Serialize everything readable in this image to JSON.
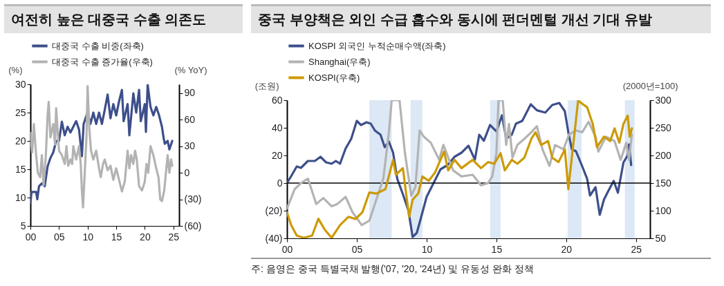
{
  "chart_data": [
    {
      "type": "line",
      "title": "여전히 높은 대중국 수출 의존도",
      "ylabel": "(%)",
      "y2label": "(% YoY)",
      "legend": "top",
      "xlim": [
        2000,
        2026
      ],
      "xticks": [
        {
          "value": 2000,
          "label": "00"
        },
        {
          "value": 2005,
          "label": "05"
        },
        {
          "value": 2010,
          "label": "10"
        },
        {
          "value": 2015,
          "label": "15"
        },
        {
          "value": 2020,
          "label": "20"
        },
        {
          "value": 2025,
          "label": "25"
        }
      ],
      "ylim": [
        5,
        30
      ],
      "yticks": [
        5,
        10,
        15,
        20,
        25,
        30
      ],
      "y2lim": [
        -60,
        100
      ],
      "y2ticks": [
        {
          "value": -60,
          "label": "(60)"
        },
        {
          "value": -30,
          "label": "(30)"
        },
        0,
        30,
        60,
        90
      ],
      "series": [
        {
          "name": "대중국 수출 비중(좌축)",
          "color": "#3d4f8a",
          "x": [
            2000,
            2000.2,
            2000.6,
            2001,
            2001.2,
            2001.5,
            2002,
            2002.5,
            2003,
            2003.5,
            2004,
            2004.5,
            2005,
            2005.5,
            2006,
            2006.5,
            2007,
            2007.5,
            2008,
            2008.5,
            2009,
            2009.3,
            2010,
            2010.5,
            2011,
            2011.5,
            2012,
            2012.5,
            2013,
            2013.5,
            2014,
            2014.5,
            2015,
            2015.5,
            2016,
            2016.3,
            2017,
            2017.3,
            2018,
            2018.5,
            2019,
            2019.3,
            2020,
            2020.2,
            2020.5,
            2021,
            2021.5,
            2022,
            2022.5,
            2023,
            2023.3,
            2023.5,
            2024,
            2024.3,
            2024.8
          ],
          "values": [
            9.1,
            11,
            11,
            11,
            9.7,
            12,
            12.5,
            12,
            15.5,
            17,
            18,
            20,
            20,
            23.4,
            21,
            22.5,
            21.5,
            22.5,
            23.5,
            22,
            17.3,
            23,
            25.1,
            23,
            25,
            23,
            25,
            23,
            25.5,
            28.2,
            24,
            26.5,
            24.5,
            27,
            29,
            23.5,
            26.5,
            21,
            28.4,
            25,
            29,
            23.5,
            26.5,
            21.6,
            30,
            26,
            24.5,
            26,
            24.5,
            22.5,
            20.5,
            19.5,
            20,
            18.5,
            20
          ]
        },
        {
          "name": "대중국 수출 증가율(우축)",
          "color": "#b3b3b3",
          "axis": "y2",
          "x": [
            2000,
            2000.3,
            2000.6,
            2001,
            2001.3,
            2001.7,
            2002,
            2002.3,
            2002.7,
            2003,
            2003.2,
            2003.5,
            2004,
            2004.3,
            2004.5,
            2005,
            2005.5,
            2006,
            2006.3,
            2006.6,
            2007,
            2007.3,
            2007.5,
            2008,
            2008.5,
            2008.8,
            2009,
            2009.2,
            2009.5,
            2009.8,
            2010,
            2010.3,
            2010.6,
            2011,
            2011.5,
            2012,
            2012.3,
            2012.7,
            2013,
            2013.5,
            2014,
            2014.5,
            2015,
            2015.5,
            2016,
            2016.5,
            2017,
            2017.3,
            2017.6,
            2018,
            2018.3,
            2018.6,
            2019,
            2019.5,
            2020,
            2020.3,
            2020.6,
            2021,
            2021.5,
            2022,
            2022.4,
            2022.7,
            2023,
            2023.4,
            2023.7,
            2024,
            2024.3,
            2024.6,
            2024.8
          ],
          "values": [
            45,
            23,
            55,
            20,
            0,
            -5,
            20,
            -14,
            20,
            65,
            80,
            40,
            55,
            32,
            73,
            25,
            20,
            10,
            30,
            8,
            15,
            10,
            30,
            15,
            30,
            10,
            -20,
            -39,
            0,
            40,
            98,
            50,
            25,
            15,
            25,
            5,
            -5,
            10,
            15,
            3,
            8,
            -8,
            5,
            -8,
            -21,
            -10,
            25,
            5,
            20,
            10,
            25,
            15,
            -15,
            -20,
            -10,
            10,
            0,
            30,
            20,
            5,
            -5,
            -30,
            -32,
            -20,
            0,
            20,
            0,
            15,
            8
          ]
        }
      ]
    },
    {
      "type": "line",
      "title": "중국 부양책은 외인 수급 흡수와 동시에 펀더멘털 개선 기대 유발",
      "ylabel": "(조원)",
      "y2label": "(2000년=100)",
      "legend": "top",
      "xlim": [
        2000,
        2026
      ],
      "xticks": [
        {
          "value": 2000,
          "label": "00"
        },
        {
          "value": 2005,
          "label": "05"
        },
        {
          "value": 2010,
          "label": "10"
        },
        {
          "value": 2015,
          "label": "15"
        },
        {
          "value": 2020,
          "label": "20"
        },
        {
          "value": 2025,
          "label": "25"
        }
      ],
      "ylim": [
        -40,
        60
      ],
      "yticks": [
        {
          "value": -40,
          "label": "(40)"
        },
        {
          "value": -20,
          "label": "(20)"
        },
        0,
        20,
        40,
        60
      ],
      "y2lim": [
        50,
        300
      ],
      "y2ticks": [
        50,
        100,
        150,
        200,
        250,
        300
      ],
      "ref_lines": [
        {
          "axis": "y",
          "value": 0,
          "color": "#000000"
        }
      ],
      "bands": [
        {
          "axis": "x",
          "from": 2005.9,
          "to": 2007.5,
          "color": "#dce8f5"
        },
        {
          "axis": "x",
          "from": 2008.85,
          "to": 2009.7,
          "color": "#dce8f5"
        },
        {
          "axis": "x",
          "from": 2014.55,
          "to": 2015.3,
          "color": "#dce8f5"
        },
        {
          "axis": "x",
          "from": 2020.1,
          "to": 2021.1,
          "color": "#dce8f5"
        },
        {
          "axis": "x",
          "from": 2024.2,
          "to": 2024.9,
          "color": "#dce8f5"
        }
      ],
      "annotations": [
        "주: 음영은 중국 특별국채 발행('07, '20, '24년) 및 유동성 완화 정책"
      ],
      "series": [
        {
          "name": "KOSPI 외국인 누적순매수액(좌축)",
          "color": "#3d4f8a",
          "x": [
            2000,
            2000.3,
            2000.7,
            2001,
            2001.5,
            2002,
            2002.4,
            2002.8,
            2003.2,
            2003.5,
            2003.8,
            2004.2,
            2004.6,
            2005,
            2005.3,
            2005.7,
            2006,
            2006.3,
            2006.7,
            2007,
            2007.3,
            2007.6,
            2007.9,
            2008.3,
            2008.7,
            2009,
            2009.3,
            2009.6,
            2010,
            2010.5,
            2011,
            2011.5,
            2012,
            2012.5,
            2013,
            2013.46,
            2013.77,
            2014.1,
            2014.54,
            2015,
            2015.4,
            2015.7,
            2016.1,
            2016.4,
            2016.85,
            2017.46,
            2017.9,
            2018.5,
            2019,
            2019.5,
            2019.9,
            2020.15,
            2020.4,
            2020.7,
            2021.15,
            2021.5,
            2021.7,
            2022.1,
            2022.4,
            2022.7,
            2023,
            2023.4,
            2023.7,
            2024.1,
            2024.4,
            2024.5,
            2024.65
          ],
          "values": [
            0,
            5,
            12,
            11,
            16,
            16,
            19,
            15,
            14,
            16,
            14,
            25,
            32,
            45,
            42,
            44,
            43,
            38,
            35,
            26,
            30,
            22,
            3,
            -8,
            -20,
            -39,
            -36,
            -25,
            -10,
            0,
            10,
            13,
            19,
            22,
            27,
            17,
            35,
            30.6,
            42,
            37.4,
            49,
            32,
            35,
            43,
            45,
            57,
            52.7,
            51,
            56.5,
            58,
            52,
            36.7,
            24.5,
            23,
            12,
            3,
            -9,
            -3,
            -23,
            -12,
            -6,
            1.6,
            -7,
            15,
            20,
            28,
            13
          ]
        },
        {
          "name": "Shanghai(우축)",
          "color": "#b3b3b3",
          "axis": "y2",
          "x": [
            2000,
            2000.55,
            2001,
            2001.5,
            2001.8,
            2002.1,
            2002.6,
            2003.2,
            2003.6,
            2004.2,
            2004.7,
            2005.35,
            2005.9,
            2006.4,
            2006.9,
            2007.3,
            2007.5,
            2008.06,
            2008.45,
            2008.9,
            2009.2,
            2009.5,
            2009.8,
            2010.3,
            2010.9,
            2011.2,
            2011.9,
            2012.5,
            2013.3,
            2013.9,
            2014.4,
            2014.7,
            2015,
            2015.15,
            2015.45,
            2015.7,
            2015.9,
            2016.15,
            2016.5,
            2017,
            2017.5,
            2017.9,
            2018.3,
            2018.8,
            2019.2,
            2019.8,
            2020.2,
            2020.7,
            2021.15,
            2021.6,
            2022.1,
            2022.3,
            2022.85,
            2023.46,
            2023.9,
            2024.3,
            2024.5,
            2024.7
          ],
          "values": [
            104,
            139,
            150,
            158,
            135,
            112,
            123,
            108,
            112,
            125,
            97,
            74,
            82,
            120,
            158,
            242,
            300,
            300,
            204,
            127,
            143,
            245,
            234,
            223,
            192,
            219,
            173,
            162,
            165,
            146,
            150,
            162,
            204,
            300,
            300,
            219,
            257,
            196,
            219,
            230,
            242,
            253,
            211,
            181,
            219,
            211,
            238,
            245,
            242,
            261,
            234,
            207,
            234,
            226,
            192,
            223,
            192,
            238
          ]
        },
        {
          "name": "KOSPI(우축)",
          "color": "#cc9a06",
          "axis": "y2",
          "x": [
            2000,
            2000.3,
            2000.7,
            2001.2,
            2001.8,
            2002.25,
            2002.7,
            2003.2,
            2003.8,
            2004.4,
            2004.9,
            2005.4,
            2005.9,
            2006.4,
            2007.05,
            2007.6,
            2007.8,
            2008.3,
            2008.75,
            2009,
            2009.4,
            2009.7,
            2010.15,
            2010.6,
            2011.25,
            2011.55,
            2012,
            2012.5,
            2013.3,
            2013.9,
            2014.4,
            2014.85,
            2015.3,
            2015.6,
            2016.1,
            2016.5,
            2017,
            2017.5,
            2017.8,
            2018.2,
            2018.7,
            2019,
            2019.45,
            2019.9,
            2020.15,
            2020.5,
            2020.85,
            2021.5,
            2021.9,
            2022.2,
            2022.7,
            2023.15,
            2023.46,
            2023.8,
            2024.1,
            2024.4,
            2024.55,
            2024.7
          ],
          "values": [
            97,
            74,
            55,
            51,
            55,
            85.5,
            66,
            51,
            74,
            89,
            85,
            97,
            133,
            131,
            139,
            192,
            165,
            177,
            89,
            120,
            131,
            162,
            154,
            169,
            207,
            173,
            192,
            177,
            192,
            177,
            188,
            185,
            204,
            173,
            192,
            185,
            196,
            230,
            242,
            219,
            226,
            196,
            188,
            211,
            139,
            219,
            299,
            287,
            257,
            215,
            234,
            226,
            249,
            223,
            257,
            272,
            234,
            249
          ]
        }
      ]
    }
  ]
}
